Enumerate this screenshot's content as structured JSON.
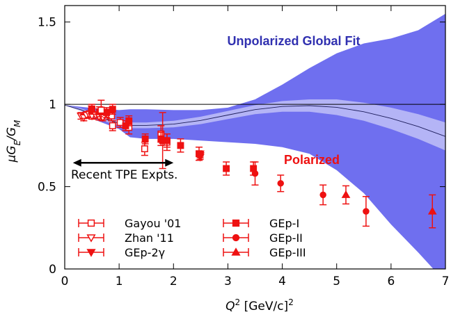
{
  "chart_data": {
    "type": "scatter",
    "xlabel": {
      "base": "Q",
      "sup": "2",
      "mid": " [GeV/c]",
      "sup2": "2"
    },
    "ylabel": {
      "prefix": "μG",
      "sub1": "E",
      "mid": "/G",
      "sub2": "M"
    },
    "xlim": [
      0,
      7
    ],
    "ylim": [
      0,
      1.6
    ],
    "xticks": [
      "0",
      "1",
      "2",
      "3",
      "4",
      "5",
      "6",
      "7"
    ],
    "yticks": [
      "0",
      "0.5",
      "1",
      "1.5"
    ],
    "ytick_values": [
      0,
      0.5,
      1,
      1.5
    ],
    "reference_line": 1,
    "colors": {
      "polarized": "#ee1111",
      "fit_outer": "#6f6fef",
      "fit_inner": "#b4b4f6",
      "fit_text": "#3030b0",
      "arrow": "#000000"
    },
    "annotations": {
      "fit_label": "Unpolarized Global Fit",
      "polarized_label": "Polarized",
      "tpe_label": "Recent TPE Expts.",
      "tpe_range": [
        0.15,
        2.0
      ],
      "tpe_y": 0.645
    },
    "fit_band": {
      "x": [
        0,
        0.3,
        0.6,
        1.0,
        1.2,
        1.5,
        2.0,
        2.5,
        3.0,
        3.5,
        4.0,
        4.5,
        5.0,
        5.5,
        6.0,
        6.5,
        7.0
      ],
      "outer_upper": [
        0.995,
        0.985,
        0.975,
        0.965,
        0.97,
        0.97,
        0.965,
        0.965,
        0.98,
        1.03,
        1.12,
        1.22,
        1.31,
        1.37,
        1.4,
        1.45,
        1.55
      ],
      "outer_lower": [
        0.995,
        0.96,
        0.9,
        0.85,
        0.8,
        0.79,
        0.79,
        0.78,
        0.77,
        0.76,
        0.74,
        0.7,
        0.6,
        0.46,
        0.27,
        0.1,
        -0.08
      ],
      "inner_upper": [
        0.995,
        0.975,
        0.94,
        0.9,
        0.89,
        0.89,
        0.9,
        0.925,
        0.96,
        0.995,
        1.02,
        1.03,
        1.03,
        1.01,
        0.98,
        0.94,
        0.89
      ],
      "inner_lower": [
        0.995,
        0.96,
        0.91,
        0.87,
        0.855,
        0.855,
        0.86,
        0.88,
        0.91,
        0.94,
        0.955,
        0.955,
        0.935,
        0.9,
        0.85,
        0.79,
        0.72
      ],
      "central": [
        0.995,
        0.967,
        0.925,
        0.885,
        0.872,
        0.872,
        0.88,
        0.902,
        0.935,
        0.968,
        0.987,
        0.992,
        0.982,
        0.955,
        0.915,
        0.865,
        0.805
      ]
    },
    "series": [
      {
        "name": "Gayou '01",
        "marker": "open-square",
        "points": [
          {
            "x": 0.49,
            "y": 0.96,
            "err": 0.03
          },
          {
            "x": 0.79,
            "y": 0.94,
            "err": 0.03
          },
          {
            "x": 0.86,
            "y": 0.93,
            "err": 0.03
          },
          {
            "x": 0.88,
            "y": 0.87,
            "err": 0.03
          },
          {
            "x": 1.02,
            "y": 0.89,
            "err": 0.03
          },
          {
            "x": 1.18,
            "y": 0.86,
            "err": 0.04
          },
          {
            "x": 1.47,
            "y": 0.73,
            "err": 0.04
          },
          {
            "x": 1.77,
            "y": 0.82,
            "err": 0.05
          },
          {
            "x": 1.88,
            "y": 0.77,
            "err": 0.05
          }
        ]
      },
      {
        "name": "Zhan '11",
        "marker": "open-triangle-down",
        "points": [
          {
            "x": 0.3,
            "y": 0.93,
            "err": 0.02
          },
          {
            "x": 0.35,
            "y": 0.92,
            "err": 0.02
          },
          {
            "x": 0.4,
            "y": 0.935,
            "err": 0.02
          },
          {
            "x": 0.45,
            "y": 0.94,
            "err": 0.02
          },
          {
            "x": 0.5,
            "y": 0.93,
            "err": 0.02
          },
          {
            "x": 0.57,
            "y": 0.935,
            "err": 0.02
          },
          {
            "x": 0.63,
            "y": 0.925,
            "err": 0.02
          },
          {
            "x": 0.7,
            "y": 0.92,
            "err": 0.02
          }
        ]
      },
      {
        "name": "GEp-2γ",
        "marker": "filled-triangle-down",
        "points": [
          {
            "x": 2.49,
            "y": 0.7,
            "err": 0.015
          },
          {
            "x": 2.49,
            "y": 0.69,
            "err": 0.015
          },
          {
            "x": 2.49,
            "y": 0.68,
            "err": 0.015
          }
        ]
      },
      {
        "name": "GEp-I",
        "marker": "filled-square",
        "points": [
          {
            "x": 0.5,
            "y": 0.97,
            "err": 0.03
          },
          {
            "x": 0.64,
            "y": 0.955,
            "err": 0.03
          },
          {
            "x": 0.77,
            "y": 0.95,
            "err": 0.03
          },
          {
            "x": 0.88,
            "y": 0.97,
            "err": 0.03
          },
          {
            "x": 1.12,
            "y": 0.87,
            "err": 0.03
          },
          {
            "x": 1.18,
            "y": 0.9,
            "err": 0.03
          },
          {
            "x": 1.48,
            "y": 0.79,
            "err": 0.03
          },
          {
            "x": 1.77,
            "y": 0.79,
            "err": 0.04
          },
          {
            "x": 1.88,
            "y": 0.78,
            "err": 0.04
          },
          {
            "x": 2.13,
            "y": 0.75,
            "err": 0.04
          },
          {
            "x": 2.47,
            "y": 0.7,
            "err": 0.04
          },
          {
            "x": 2.97,
            "y": 0.61,
            "err": 0.04
          },
          {
            "x": 3.47,
            "y": 0.61,
            "err": 0.04
          }
        ]
      },
      {
        "name": "GEp-II",
        "marker": "filled-circle",
        "points": [
          {
            "x": 3.5,
            "y": 0.58,
            "err": 0.07
          },
          {
            "x": 3.97,
            "y": 0.52,
            "err": 0.05
          },
          {
            "x": 4.75,
            "y": 0.45,
            "err": 0.06
          },
          {
            "x": 5.54,
            "y": 0.35,
            "err": 0.09
          }
        ]
      },
      {
        "name": "GEp-III",
        "marker": "filled-triangle-up",
        "points": [
          {
            "x": 5.17,
            "y": 0.45,
            "err": 0.055
          },
          {
            "x": 6.76,
            "y": 0.35,
            "err": 0.1
          }
        ]
      }
    ],
    "extra_points": [
      {
        "x": 0.67,
        "y": 0.965,
        "err": 0.06,
        "marker": "open-square"
      },
      {
        "x": 1.8,
        "y": 0.78,
        "err": 0.17,
        "marker": "filled-square"
      }
    ]
  }
}
